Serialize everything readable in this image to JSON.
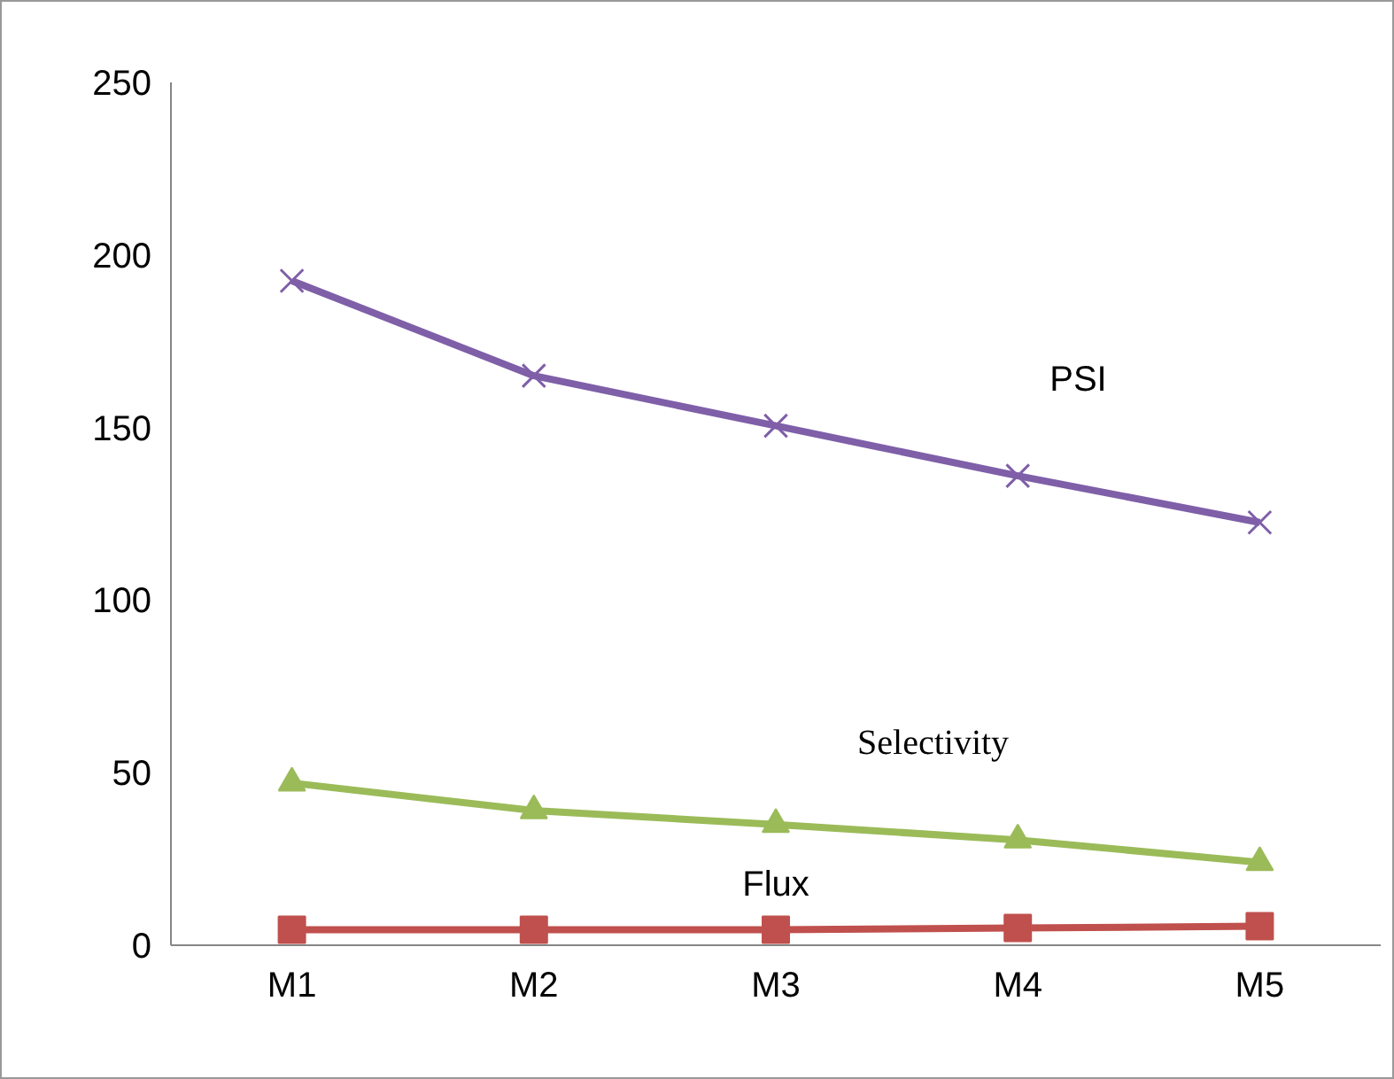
{
  "chart_data": {
    "type": "line",
    "categories": [
      "M1",
      "M2",
      "M3",
      "M4",
      "M5"
    ],
    "series": [
      {
        "name": "PSI",
        "color": "#7f5fa8",
        "marker": "cross",
        "values": [
          192.5,
          165,
          150.5,
          136,
          122.5
        ]
      },
      {
        "name": "Selectivity",
        "color": "#9bbb59",
        "marker": "triangle",
        "values": [
          47,
          39,
          35,
          30.5,
          24
        ]
      },
      {
        "name": "Flux",
        "color": "#c0504d",
        "marker": "square",
        "values": [
          4.5,
          4.5,
          4.5,
          5,
          5.5
        ]
      }
    ],
    "ylim": [
      0,
      250
    ],
    "yticks": [
      0,
      50,
      100,
      150,
      200,
      250
    ],
    "grid": false
  }
}
